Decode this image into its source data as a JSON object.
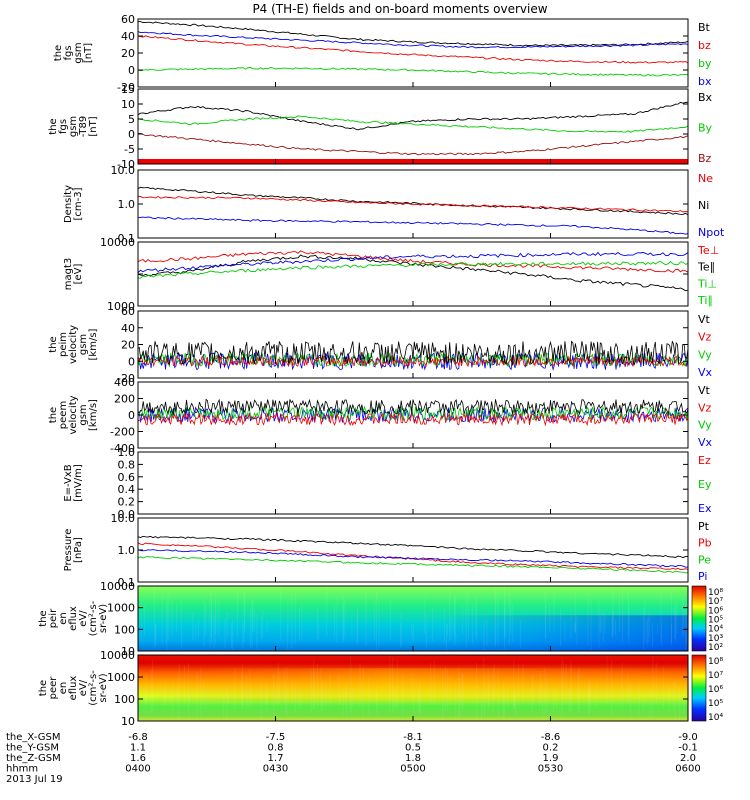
{
  "title": "P4 (TH-E) fields and on-board moments overview",
  "colors": {
    "black": "#000000",
    "red": "#ee0000",
    "green": "#00cc00",
    "blue": "#0000ee",
    "darkred": "#991111"
  },
  "footer": {
    "rows": [
      {
        "label": "the_X-GSM",
        "values": [
          "-6.8",
          "-7.5",
          "-8.1",
          "-8.6",
          "-9.0"
        ]
      },
      {
        "label": "the_Y-GSM",
        "values": [
          "1.1",
          "0.8",
          "0.5",
          "0.2",
          "-0.1"
        ]
      },
      {
        "label": "the_Z-GSM",
        "values": [
          "1.6",
          "1.7",
          "1.8",
          "1.9",
          "2.0"
        ]
      },
      {
        "label": "hhmm",
        "values": [
          "0400",
          "0430",
          "0500",
          "0530",
          "0600"
        ]
      }
    ],
    "date": "2013 Jul 19"
  },
  "colorbars": [
    {
      "ticks": [
        "10⁸",
        "10⁷",
        "10⁶",
        "10⁵",
        "10⁴",
        "10³",
        "10²"
      ]
    },
    {
      "ticks": [
        "10⁸",
        "10⁷",
        "10⁶",
        "10⁵",
        "10⁴"
      ]
    }
  ],
  "chart_data": [
    {
      "type": "line",
      "ylabel": [
        "the",
        "fgs",
        "gsm",
        "[nT]"
      ],
      "yticks": [
        "60",
        "40",
        "20",
        "0",
        "-20"
      ],
      "ylim": [
        -20,
        60
      ],
      "legend": [
        {
          "label": "Bt",
          "color": "black"
        },
        {
          "label": "bz",
          "color": "red"
        },
        {
          "label": "by",
          "color": "green"
        },
        {
          "label": "bx",
          "color": "blue"
        }
      ],
      "series": [
        {
          "color": "black",
          "x": [
            0,
            0.1,
            0.2,
            0.3,
            0.4,
            0.5,
            0.6,
            0.7,
            0.8,
            0.9,
            1
          ],
          "y": [
            57,
            53,
            48,
            42,
            36,
            33,
            31,
            29,
            29,
            30,
            33
          ]
        },
        {
          "color": "blue",
          "x": [
            0,
            0.1,
            0.2,
            0.3,
            0.4,
            0.5,
            0.6,
            0.7,
            0.8,
            0.9,
            1
          ],
          "y": [
            45,
            41,
            38,
            35,
            32,
            29,
            27,
            27,
            28,
            29,
            31
          ]
        },
        {
          "color": "red",
          "x": [
            0,
            0.1,
            0.2,
            0.3,
            0.4,
            0.5,
            0.6,
            0.7,
            0.8,
            0.9,
            1
          ],
          "y": [
            40,
            35,
            30,
            26,
            22,
            18,
            15,
            12,
            10,
            9,
            9
          ]
        },
        {
          "color": "green",
          "x": [
            0,
            0.1,
            0.2,
            0.3,
            0.4,
            0.5,
            0.6,
            0.7,
            0.8,
            0.9,
            1
          ],
          "y": [
            0,
            1,
            2,
            2,
            1,
            0,
            -2,
            -4,
            -5,
            -6,
            -6
          ]
        }
      ]
    },
    {
      "type": "line",
      "ylabel": [
        "the",
        "fgs",
        "gsm",
        "-T89",
        "[nT]"
      ],
      "yticks": [
        "15",
        "10",
        "5",
        "0",
        "-5",
        "-10"
      ],
      "ylim": [
        -15,
        15
      ],
      "legend": [
        {
          "label": "Bx",
          "color": "black"
        },
        {
          "label": "By",
          "color": "green"
        },
        {
          "label": "Bz",
          "color": "darkred"
        }
      ],
      "series": [
        {
          "color": "black",
          "x": [
            0,
            0.1,
            0.2,
            0.3,
            0.4,
            0.5,
            0.6,
            0.7,
            0.8,
            0.9,
            1
          ],
          "y": [
            5,
            8,
            6,
            2,
            -1,
            2,
            3,
            3,
            4,
            5,
            10
          ]
        },
        {
          "color": "green",
          "x": [
            0,
            0.1,
            0.2,
            0.3,
            0.4,
            0.5,
            0.6,
            0.7,
            0.8,
            0.9,
            1
          ],
          "y": [
            3,
            1,
            3,
            4,
            2,
            1,
            0,
            -1,
            -2,
            -2,
            0
          ]
        },
        {
          "color": "darkred",
          "x": [
            0,
            0.1,
            0.2,
            0.3,
            0.4,
            0.5,
            0.6,
            0.7,
            0.8,
            0.9,
            1
          ],
          "y": [
            -3,
            -5,
            -7,
            -9,
            -10,
            -11,
            -11,
            -10,
            -8,
            -6,
            -4
          ]
        }
      ]
    },
    {
      "type": "line",
      "ylabel": [
        "Density",
        "[cm-3]"
      ],
      "yticks": [
        "10.0",
        "1.0",
        "0.1"
      ],
      "ylim": [
        0.1,
        10
      ],
      "log": true,
      "legend": [
        {
          "label": "Ne",
          "color": "red"
        },
        {
          "label": "Ni",
          "color": "black"
        },
        {
          "label": "Npot",
          "color": "blue"
        }
      ],
      "series": [
        {
          "color": "black",
          "x": [
            0,
            0.2,
            0.4,
            0.6,
            0.8,
            1
          ],
          "y": [
            3,
            1.8,
            1.2,
            0.9,
            0.7,
            0.5
          ]
        },
        {
          "color": "red",
          "x": [
            0,
            0.2,
            0.4,
            0.6,
            0.8,
            1
          ],
          "y": [
            1.6,
            1.5,
            1.1,
            0.9,
            0.75,
            0.6
          ]
        },
        {
          "color": "blue",
          "x": [
            0,
            0.2,
            0.4,
            0.6,
            0.8,
            1
          ],
          "y": [
            0.4,
            0.33,
            0.3,
            0.26,
            0.22,
            0.13
          ]
        }
      ]
    },
    {
      "type": "line",
      "ylabel": [
        "magt3",
        "[eV]"
      ],
      "yticks": [
        "10000",
        "",
        "1000"
      ],
      "ylim": [
        1000,
        10000
      ],
      "log": true,
      "legend": [
        {
          "label": "Te⊥",
          "color": "red"
        },
        {
          "label": "Te∥",
          "color": "black"
        },
        {
          "label": "Ti⊥",
          "color": "green"
        },
        {
          "label": "Ti∥",
          "color": "green"
        }
      ],
      "series": [
        {
          "color": "red",
          "x": [
            0,
            0.1,
            0.2,
            0.3,
            0.4,
            0.5,
            0.6,
            0.8,
            1
          ],
          "y": [
            5000,
            5500,
            6500,
            7000,
            6000,
            5000,
            4500,
            4000,
            3500
          ]
        },
        {
          "color": "black",
          "x": [
            0,
            0.1,
            0.2,
            0.3,
            0.4,
            0.5,
            0.6,
            0.8,
            1
          ],
          "y": [
            3000,
            3500,
            5000,
            6000,
            5500,
            4500,
            3800,
            2500,
            1800
          ]
        },
        {
          "color": "blue",
          "x": [
            0,
            0.1,
            0.2,
            0.3,
            0.4,
            0.5,
            0.6,
            0.8,
            1
          ],
          "y": [
            3500,
            4000,
            4500,
            5000,
            5500,
            6000,
            6000,
            6500,
            6500
          ]
        },
        {
          "color": "green",
          "x": [
            0,
            0.1,
            0.2,
            0.3,
            0.4,
            0.5,
            0.6,
            0.8,
            1
          ],
          "y": [
            2800,
            3200,
            3600,
            4000,
            4200,
            4400,
            4500,
            4600,
            4700
          ]
        }
      ]
    },
    {
      "type": "line",
      "noisy": true,
      "ylabel": [
        "the",
        "peim",
        "velocity",
        "gsm",
        "[km/s]"
      ],
      "yticks": [
        "60",
        "40",
        "20",
        "0",
        "-20"
      ],
      "ylim": [
        -20,
        60
      ],
      "legend": [
        {
          "label": "Vt",
          "color": "black"
        },
        {
          "label": "Vz",
          "color": "red"
        },
        {
          "label": "Vy",
          "color": "green"
        },
        {
          "label": "Vx",
          "color": "blue"
        }
      ],
      "series": [
        {
          "color": "blue",
          "base": 0,
          "amp": 10
        },
        {
          "color": "green",
          "base": 2,
          "amp": 8
        },
        {
          "color": "red",
          "base": 0,
          "amp": 6
        },
        {
          "color": "black",
          "base": 10,
          "amp": 14
        }
      ]
    },
    {
      "type": "line",
      "noisy": true,
      "ylabel": [
        "the",
        "peem",
        "velocity",
        "gsm",
        "[km/s]"
      ],
      "yticks": [
        "400",
        "200",
        "0",
        "-200",
        "-400"
      ],
      "ylim": [
        -400,
        400
      ],
      "legend": [
        {
          "label": "Vt",
          "color": "black"
        },
        {
          "label": "Vz",
          "color": "red"
        },
        {
          "label": "Vy",
          "color": "green"
        },
        {
          "label": "Vx",
          "color": "blue"
        }
      ],
      "series": [
        {
          "color": "blue",
          "base": 0,
          "amp": 90
        },
        {
          "color": "green",
          "base": 20,
          "amp": 80
        },
        {
          "color": "black",
          "base": 100,
          "amp": 90
        },
        {
          "color": "red",
          "base": -50,
          "amp": 70
        }
      ]
    },
    {
      "type": "line",
      "ylabel": [
        "E=-VxB",
        "[mV/m]"
      ],
      "yticks": [
        "1.0",
        "0.8",
        "0.6",
        "0.4",
        "0.2",
        "0.0"
      ],
      "ylim": [
        0,
        1
      ],
      "legend": [
        {
          "label": "Ez",
          "color": "red"
        },
        {
          "label": "Ey",
          "color": "green"
        },
        {
          "label": "Ex",
          "color": "blue"
        }
      ],
      "series": []
    },
    {
      "type": "line",
      "ylabel": [
        "Pressure",
        "[nPa]"
      ],
      "yticks": [
        "10.0",
        "1.0",
        "0.1"
      ],
      "ylim": [
        0.1,
        10
      ],
      "log": true,
      "legend": [
        {
          "label": "Pt",
          "color": "black"
        },
        {
          "label": "Pb",
          "color": "red"
        },
        {
          "label": "Pe",
          "color": "green"
        },
        {
          "label": "Pi",
          "color": "blue"
        }
      ],
      "series": [
        {
          "color": "black",
          "x": [
            0,
            0.2,
            0.4,
            0.6,
            0.8,
            1
          ],
          "y": [
            2.6,
            2.2,
            1.6,
            1.1,
            0.8,
            0.6
          ]
        },
        {
          "color": "red",
          "x": [
            0,
            0.2,
            0.4,
            0.6,
            0.8,
            1
          ],
          "y": [
            1.6,
            1.1,
            0.65,
            0.4,
            0.3,
            0.25
          ]
        },
        {
          "color": "blue",
          "x": [
            0,
            0.2,
            0.4,
            0.6,
            0.8,
            1
          ],
          "y": [
            1.0,
            0.85,
            0.6,
            0.5,
            0.4,
            0.3
          ]
        },
        {
          "color": "green",
          "x": [
            0,
            0.2,
            0.4,
            0.6,
            0.8,
            1
          ],
          "y": [
            0.6,
            0.5,
            0.4,
            0.33,
            0.27,
            0.2
          ]
        }
      ]
    },
    {
      "type": "heatmap",
      "ylabel": [
        "the",
        "peir",
        "en",
        "eflux",
        "eV/",
        "(cm²-s-",
        "sr-eV)"
      ],
      "yticks": [
        "10000",
        "1000",
        "100",
        "10"
      ],
      "ylim": [
        10,
        20000
      ],
      "log": true
    },
    {
      "type": "heatmap",
      "ylabel": [
        "the",
        "peer",
        "en",
        "eflux",
        "eV/",
        "(cm²-s-",
        "sr-eV)"
      ],
      "yticks": [
        "10000",
        "1000",
        "100",
        "10"
      ],
      "ylim": [
        10,
        20000
      ],
      "log": true
    }
  ]
}
